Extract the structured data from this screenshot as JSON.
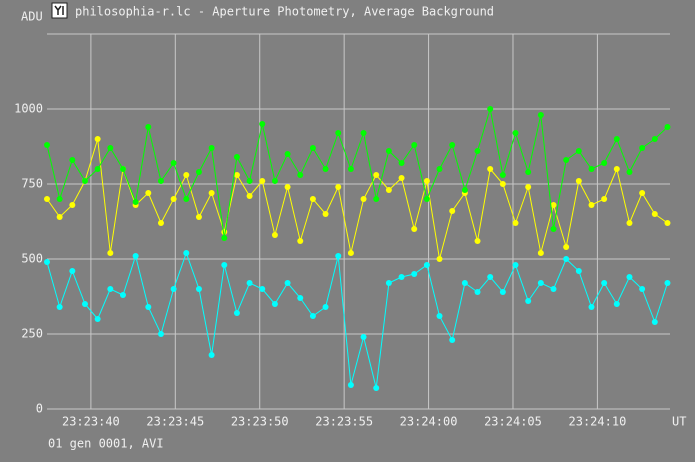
{
  "chart_data": {
    "type": "line",
    "title": "philosophia-r.lc - Aperture Photometry, Average Background",
    "y_label": "ADU",
    "x_label": "UT",
    "footer": "01 gen 0001, AVI",
    "grid": true,
    "xlim": [
      84217.4,
      84254.3
    ],
    "ylim": [
      0,
      1250
    ],
    "yticks": [
      0,
      250,
      500,
      750,
      1000
    ],
    "xticks": [
      {
        "value": 84220,
        "label": "23:23:40"
      },
      {
        "value": 84225,
        "label": "23:23:45"
      },
      {
        "value": 84230,
        "label": "23:23:50"
      },
      {
        "value": 84235,
        "label": "23:23:55"
      },
      {
        "value": 84240,
        "label": "23:24:00"
      },
      {
        "value": 84245,
        "label": "23:24:05"
      },
      {
        "value": 84250,
        "label": "23:24:10"
      }
    ],
    "x": [
      84217.4,
      84218.15,
      84218.9,
      84219.65,
      84220.4,
      84221.15,
      84221.9,
      84222.65,
      84223.4,
      84224.15,
      84224.9,
      84225.65,
      84226.4,
      84227.15,
      84227.9,
      84228.65,
      84229.4,
      84230.15,
      84230.9,
      84231.65,
      84232.4,
      84233.15,
      84233.9,
      84234.65,
      84235.4,
      84236.15,
      84236.9,
      84237.65,
      84238.4,
      84239.15,
      84239.9,
      84240.65,
      84241.4,
      84242.15,
      84242.9,
      84243.65,
      84244.4,
      84245.15,
      84245.9,
      84246.65,
      84247.4,
      84248.15,
      84248.9,
      84249.65,
      84250.4,
      84251.15,
      84251.9,
      84252.65,
      84253.4,
      84254.15
    ],
    "series": [
      {
        "color": "#ffff00",
        "values": [
          700,
          640,
          680,
          760,
          900,
          520,
          800,
          680,
          720,
          620,
          700,
          780,
          640,
          720,
          590,
          780,
          710,
          760,
          580,
          740,
          560,
          700,
          650,
          740,
          520,
          700,
          780,
          730,
          770,
          600,
          760,
          500,
          660,
          720,
          560,
          800,
          750,
          620,
          740,
          520,
          680,
          540,
          760,
          680,
          700,
          800,
          620,
          720,
          650,
          620
        ]
      },
      {
        "color": "#00ff00",
        "values": [
          880,
          700,
          830,
          760,
          800,
          870,
          800,
          690,
          940,
          760,
          820,
          700,
          790,
          870,
          570,
          840,
          760,
          950,
          760,
          850,
          780,
          870,
          800,
          920,
          800,
          920,
          700,
          860,
          820,
          880,
          700,
          800,
          880,
          730,
          860,
          1000,
          780,
          920,
          790,
          980,
          600,
          830,
          860,
          800,
          820,
          900,
          790,
          870,
          900,
          940
        ]
      },
      {
        "color": "#00ffff",
        "values": [
          490,
          340,
          460,
          350,
          300,
          400,
          380,
          510,
          340,
          250,
          400,
          520,
          400,
          180,
          480,
          320,
          420,
          400,
          350,
          420,
          370,
          310,
          340,
          510,
          80,
          240,
          70,
          420,
          440,
          450,
          480,
          310,
          230,
          420,
          390,
          440,
          390,
          480,
          360,
          420,
          400,
          500,
          460,
          340,
          420,
          350,
          440,
          400,
          290,
          420
        ]
      }
    ]
  }
}
